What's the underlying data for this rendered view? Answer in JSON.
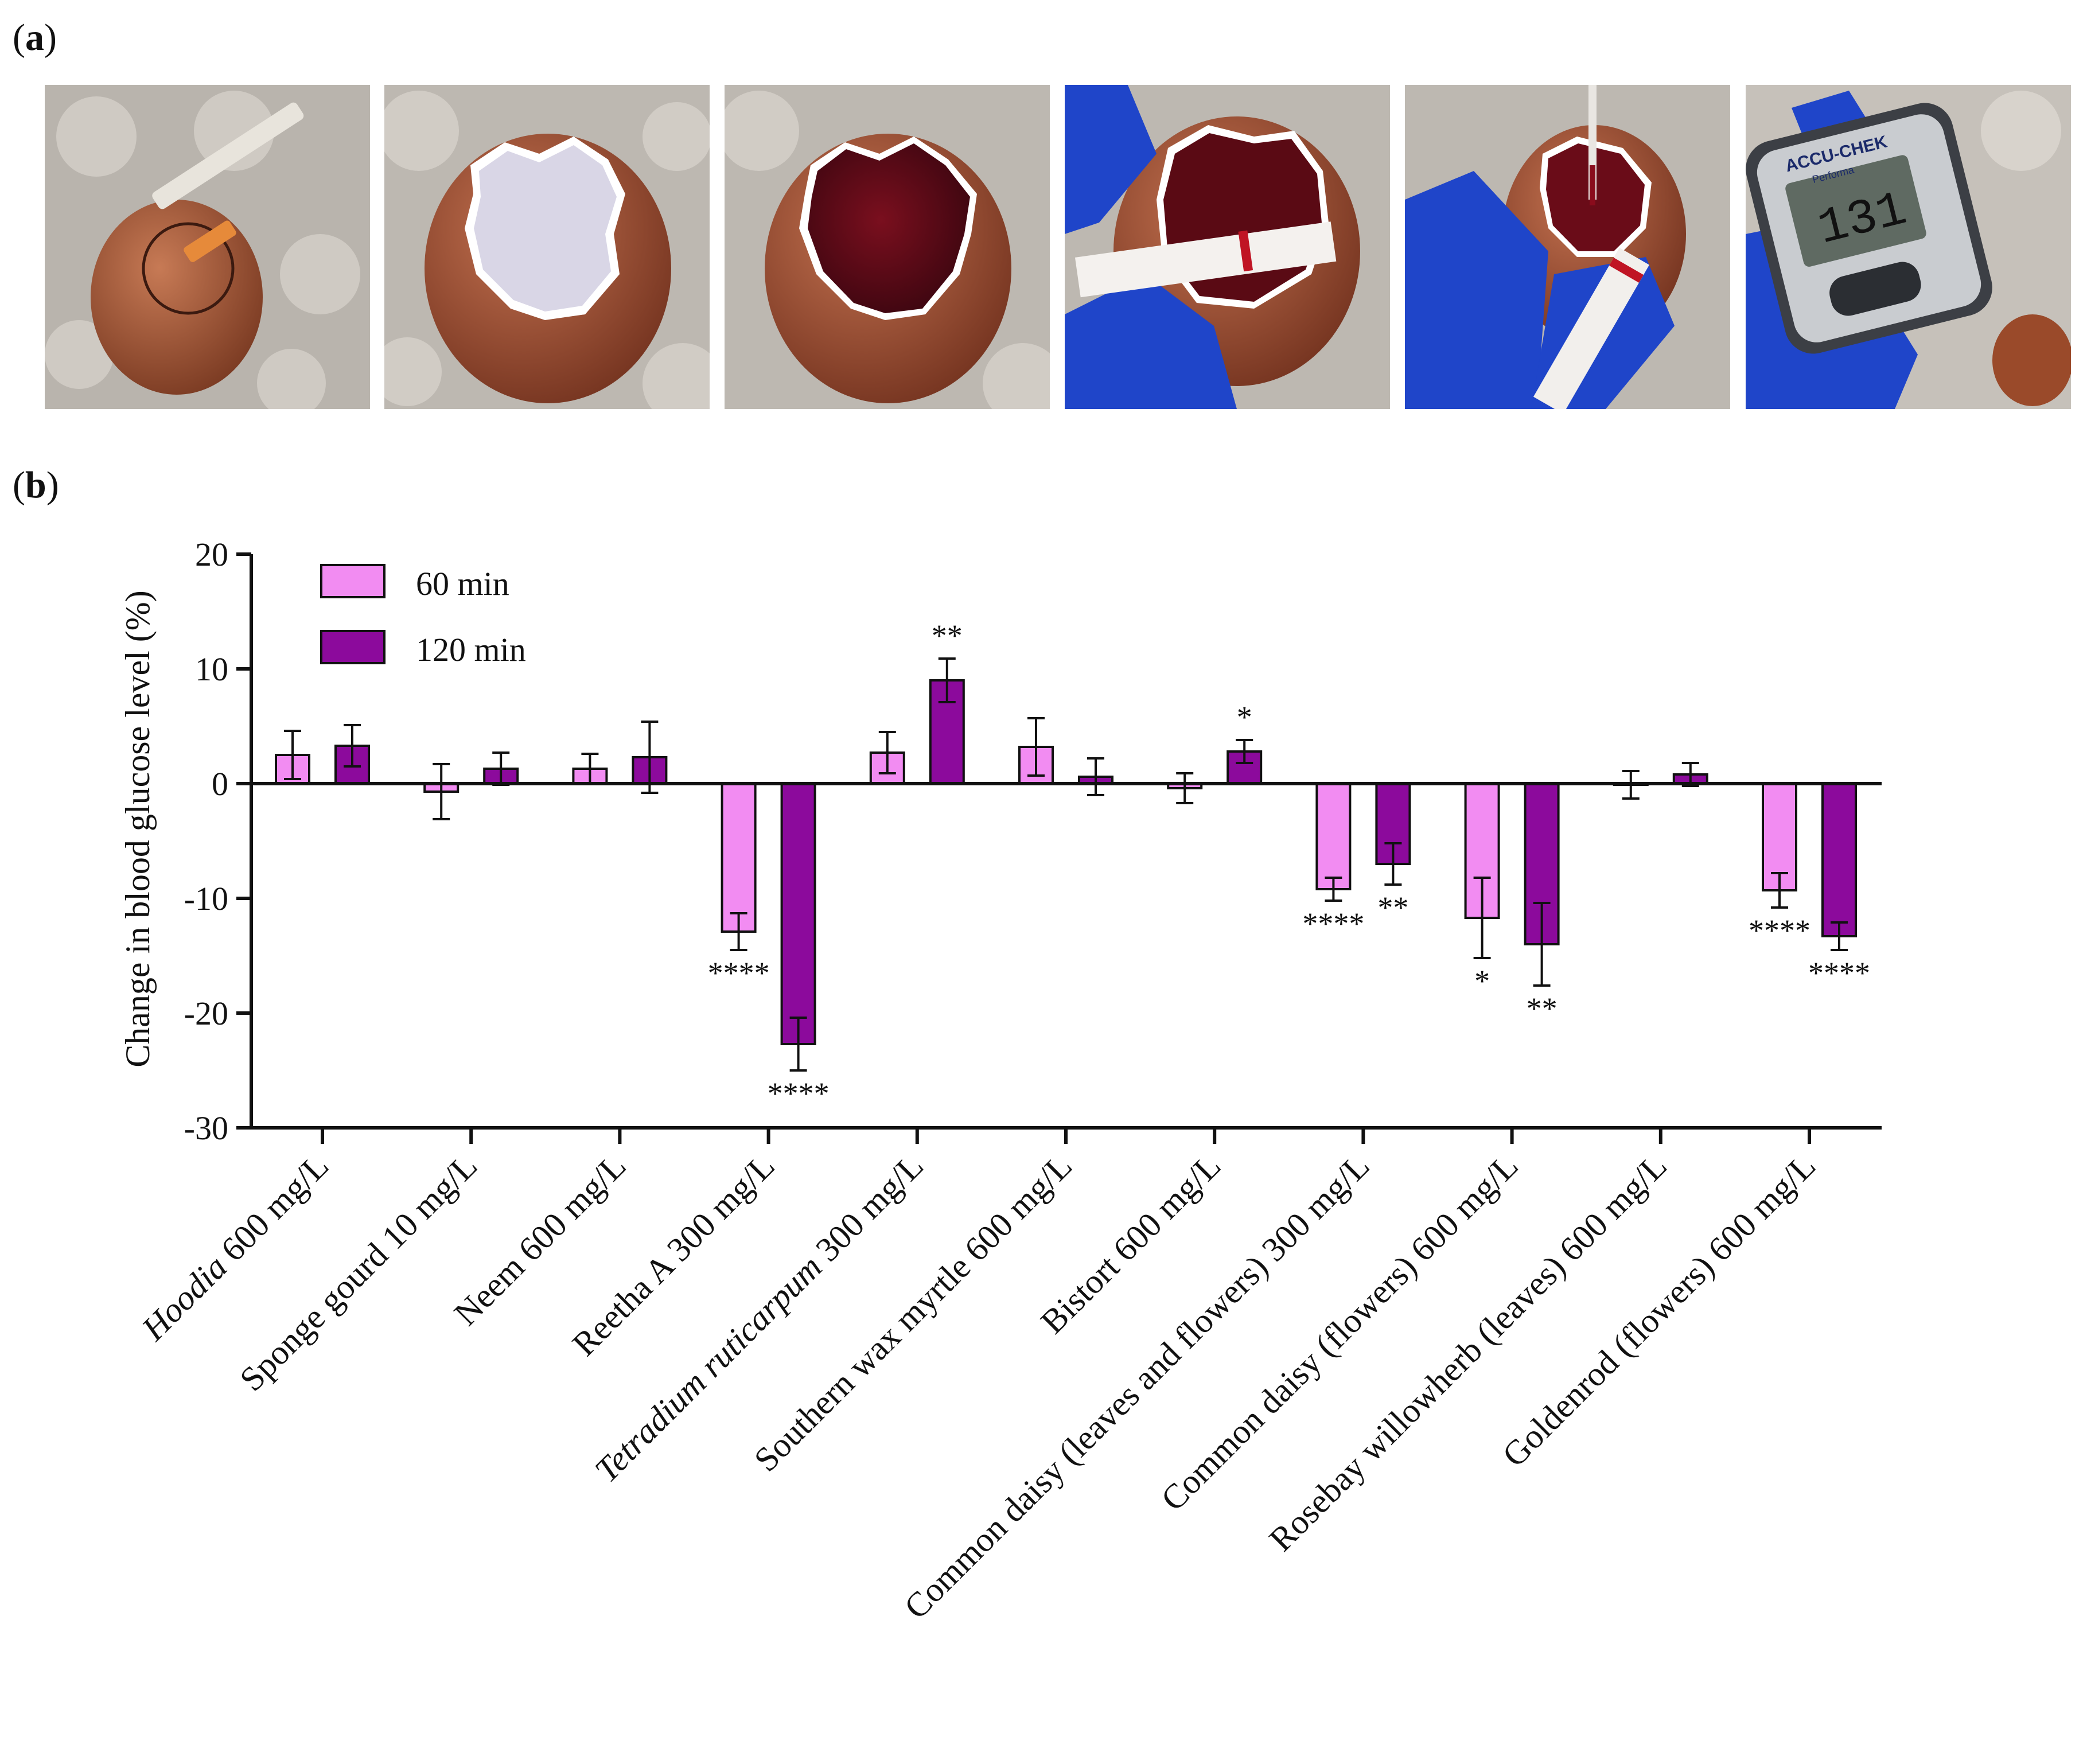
{
  "panels": {
    "a": "a",
    "b": "b"
  },
  "photos": [
    {
      "name": "egg-injection-photo"
    },
    {
      "name": "egg-opened-membrane-photo"
    },
    {
      "name": "egg-opened-blood-photo"
    },
    {
      "name": "egg-strip-photo"
    },
    {
      "name": "egg-pipette-strip-photo"
    },
    {
      "name": "glucometer-photo",
      "meter_brand": "ACCU-CHEK",
      "meter_model": "Performa",
      "meter_reading": "131"
    }
  ],
  "colors": {
    "min60": "#f28cf2",
    "min120": "#8c0a9c",
    "axis": "#111111"
  },
  "chart_data": {
    "type": "bar",
    "ylabel": "Change in blood glucose level (%)",
    "ylim": [
      -30,
      20
    ],
    "yticks": [
      20,
      10,
      0,
      -10,
      -20,
      -30
    ],
    "ytick_labels": [
      "20",
      "10",
      "0",
      "-10",
      "-20",
      "-30"
    ],
    "legend": {
      "placement": "top-left"
    },
    "categories": [
      {
        "parts": [
          {
            "t": "Hoodia",
            "i": true
          },
          {
            "t": " 600 mg/L",
            "i": false
          }
        ]
      },
      {
        "parts": [
          {
            "t": "Sponge gourd 10 mg/L",
            "i": false
          }
        ]
      },
      {
        "parts": [
          {
            "t": "Neem 600 mg/L",
            "i": false
          }
        ]
      },
      {
        "parts": [
          {
            "t": "Reetha A 300 mg/L",
            "i": false
          }
        ]
      },
      {
        "parts": [
          {
            "t": "Tetradium ruticarpum",
            "i": true
          },
          {
            "t": " 300 mg/L",
            "i": false
          }
        ]
      },
      {
        "parts": [
          {
            "t": "Southern wax myrtle 600 mg/L",
            "i": false
          }
        ]
      },
      {
        "parts": [
          {
            "t": "Bistort 600 mg/L",
            "i": false
          }
        ]
      },
      {
        "parts": [
          {
            "t": "Common daisy (leaves and flowers) 300 mg/L",
            "i": false
          }
        ]
      },
      {
        "parts": [
          {
            "t": "Common daisy (flowers) 600 mg/L",
            "i": false
          }
        ]
      },
      {
        "parts": [
          {
            "t": "Rosebay willowherb (leaves) 600 mg/L",
            "i": false
          }
        ]
      },
      {
        "parts": [
          {
            "t": "Goldenrod (flowers) 600 mg/L",
            "i": false
          }
        ]
      }
    ],
    "series": [
      {
        "name": "60 min",
        "values": [
          2.5,
          -0.7,
          1.3,
          -12.9,
          2.7,
          3.2,
          -0.4,
          -9.2,
          -11.7,
          -0.1,
          -9.3
        ],
        "errors": [
          2.1,
          2.4,
          1.3,
          1.6,
          1.8,
          2.5,
          1.3,
          1.0,
          3.5,
          1.2,
          1.5
        ],
        "significance": [
          "",
          "",
          "",
          "****",
          "",
          "",
          "",
          "****",
          "*",
          "",
          "****"
        ]
      },
      {
        "name": "120 min",
        "values": [
          3.3,
          1.3,
          2.3,
          -22.7,
          9.0,
          0.6,
          2.8,
          -7.0,
          -14.0,
          0.8,
          -13.3
        ],
        "errors": [
          1.8,
          1.4,
          3.1,
          2.3,
          1.9,
          1.6,
          1.0,
          1.8,
          3.6,
          1.0,
          1.2
        ],
        "significance": [
          "",
          "",
          "",
          "****",
          "**",
          "",
          "*",
          "**",
          "**",
          "",
          "****"
        ]
      }
    ]
  }
}
